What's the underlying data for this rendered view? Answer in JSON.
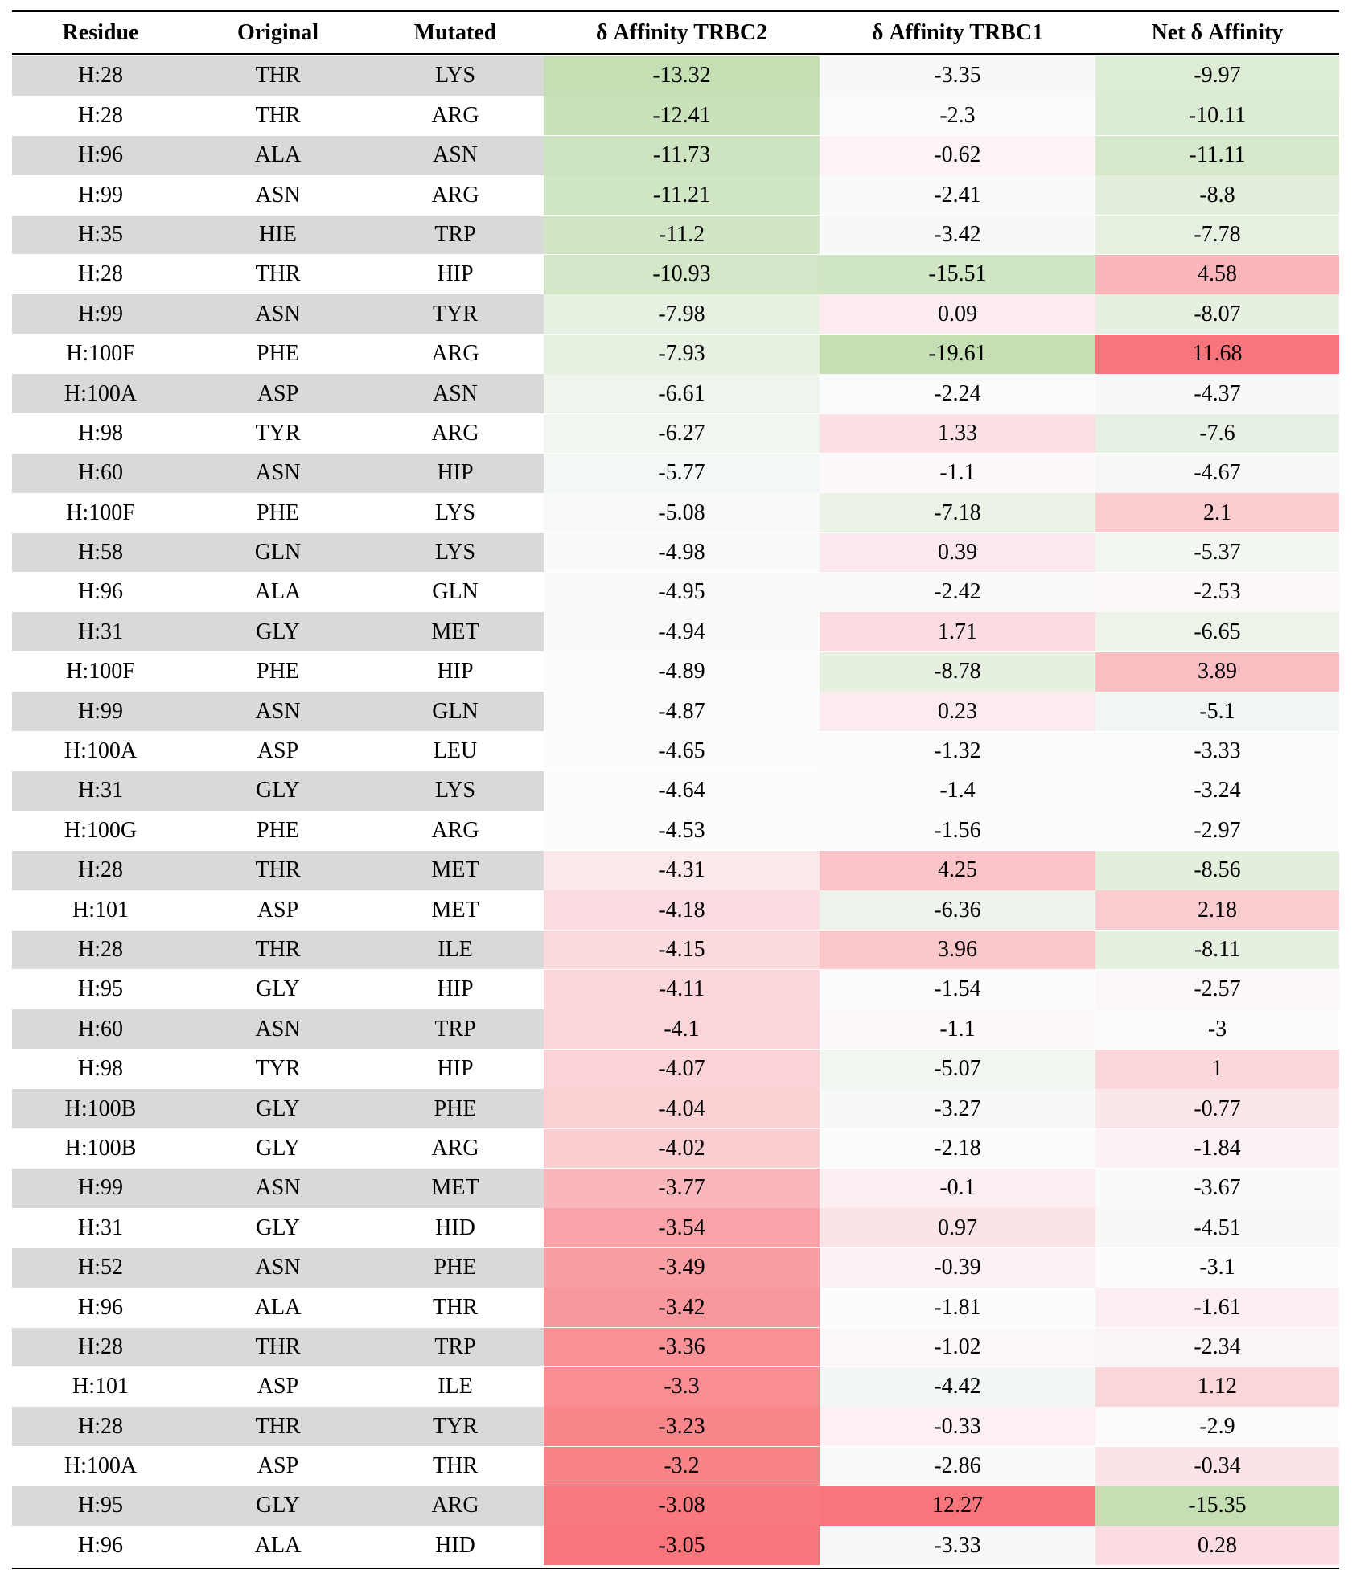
{
  "table": {
    "headers": [
      "Residue",
      "Original",
      "Mutated",
      "δ Affinity TRBC2",
      "δ Affinity TRBC1",
      "Net δ Affinity"
    ],
    "colors": {
      "label_band": "#d9d9d9",
      "negative_max": "#c4dfb3",
      "positive_max": "#f8767b",
      "neutral": "#fcfcff"
    },
    "rows": [
      [
        "H:28",
        "THR",
        "LYS",
        "-13.32",
        "-3.35",
        "-9.97"
      ],
      [
        "H:28",
        "THR",
        "ARG",
        "-12.41",
        "-2.3",
        "-10.11"
      ],
      [
        "H:96",
        "ALA",
        "ASN",
        "-11.73",
        "-0.62",
        "-11.11"
      ],
      [
        "H:99",
        "ASN",
        "ARG",
        "-11.21",
        "-2.41",
        "-8.8"
      ],
      [
        "H:35",
        "HIE",
        "TRP",
        "-11.2",
        "-3.42",
        "-7.78"
      ],
      [
        "H:28",
        "THR",
        "HIP",
        "-10.93",
        "-15.51",
        "4.58"
      ],
      [
        "H:99",
        "ASN",
        "TYR",
        "-7.98",
        "0.09",
        "-8.07"
      ],
      [
        "H:100F",
        "PHE",
        "ARG",
        "-7.93",
        "-19.61",
        "11.68"
      ],
      [
        "H:100A",
        "ASP",
        "ASN",
        "-6.61",
        "-2.24",
        "-4.37"
      ],
      [
        "H:98",
        "TYR",
        "ARG",
        "-6.27",
        "1.33",
        "-7.6"
      ],
      [
        "H:60",
        "ASN",
        "HIP",
        "-5.77",
        "-1.1",
        "-4.67"
      ],
      [
        "H:100F",
        "PHE",
        "LYS",
        "-5.08",
        "-7.18",
        "2.1"
      ],
      [
        "H:58",
        "GLN",
        "LYS",
        "-4.98",
        "0.39",
        "-5.37"
      ],
      [
        "H:96",
        "ALA",
        "GLN",
        "-4.95",
        "-2.42",
        "-2.53"
      ],
      [
        "H:31",
        "GLY",
        "MET",
        "-4.94",
        "1.71",
        "-6.65"
      ],
      [
        "H:100F",
        "PHE",
        "HIP",
        "-4.89",
        "-8.78",
        "3.89"
      ],
      [
        "H:99",
        "ASN",
        "GLN",
        "-4.87",
        "0.23",
        "-5.1"
      ],
      [
        "H:100A",
        "ASP",
        "LEU",
        "-4.65",
        "-1.32",
        "-3.33"
      ],
      [
        "H:31",
        "GLY",
        "LYS",
        "-4.64",
        "-1.4",
        "-3.24"
      ],
      [
        "H:100G",
        "PHE",
        "ARG",
        "-4.53",
        "-1.56",
        "-2.97"
      ],
      [
        "H:28",
        "THR",
        "MET",
        "-4.31",
        "4.25",
        "-8.56"
      ],
      [
        "H:101",
        "ASP",
        "MET",
        "-4.18",
        "-6.36",
        "2.18"
      ],
      [
        "H:28",
        "THR",
        "ILE",
        "-4.15",
        "3.96",
        "-8.11"
      ],
      [
        "H:95",
        "GLY",
        "HIP",
        "-4.11",
        "-1.54",
        "-2.57"
      ],
      [
        "H:60",
        "ASN",
        "TRP",
        "-4.1",
        "-1.1",
        "-3"
      ],
      [
        "H:98",
        "TYR",
        "HIP",
        "-4.07",
        "-5.07",
        "1"
      ],
      [
        "H:100B",
        "GLY",
        "PHE",
        "-4.04",
        "-3.27",
        "-0.77"
      ],
      [
        "H:100B",
        "GLY",
        "ARG",
        "-4.02",
        "-2.18",
        "-1.84"
      ],
      [
        "H:99",
        "ASN",
        "MET",
        "-3.77",
        "-0.1",
        "-3.67"
      ],
      [
        "H:31",
        "GLY",
        "HID",
        "-3.54",
        "0.97",
        "-4.51"
      ],
      [
        "H:52",
        "ASN",
        "PHE",
        "-3.49",
        "-0.39",
        "-3.1"
      ],
      [
        "H:96",
        "ALA",
        "THR",
        "-3.42",
        "-1.81",
        "-1.61"
      ],
      [
        "H:28",
        "THR",
        "TRP",
        "-3.36",
        "-1.02",
        "-2.34"
      ],
      [
        "H:101",
        "ASP",
        "ILE",
        "-3.3",
        "-4.42",
        "1.12"
      ],
      [
        "H:28",
        "THR",
        "TYR",
        "-3.23",
        "-0.33",
        "-2.9"
      ],
      [
        "H:100A",
        "ASP",
        "THR",
        "-3.2",
        "-2.86",
        "-0.34"
      ],
      [
        "H:95",
        "GLY",
        "ARG",
        "-3.08",
        "12.27",
        "-15.35"
      ],
      [
        "H:96",
        "ALA",
        "HID",
        "-3.05",
        "-3.33",
        "0.28"
      ]
    ]
  }
}
